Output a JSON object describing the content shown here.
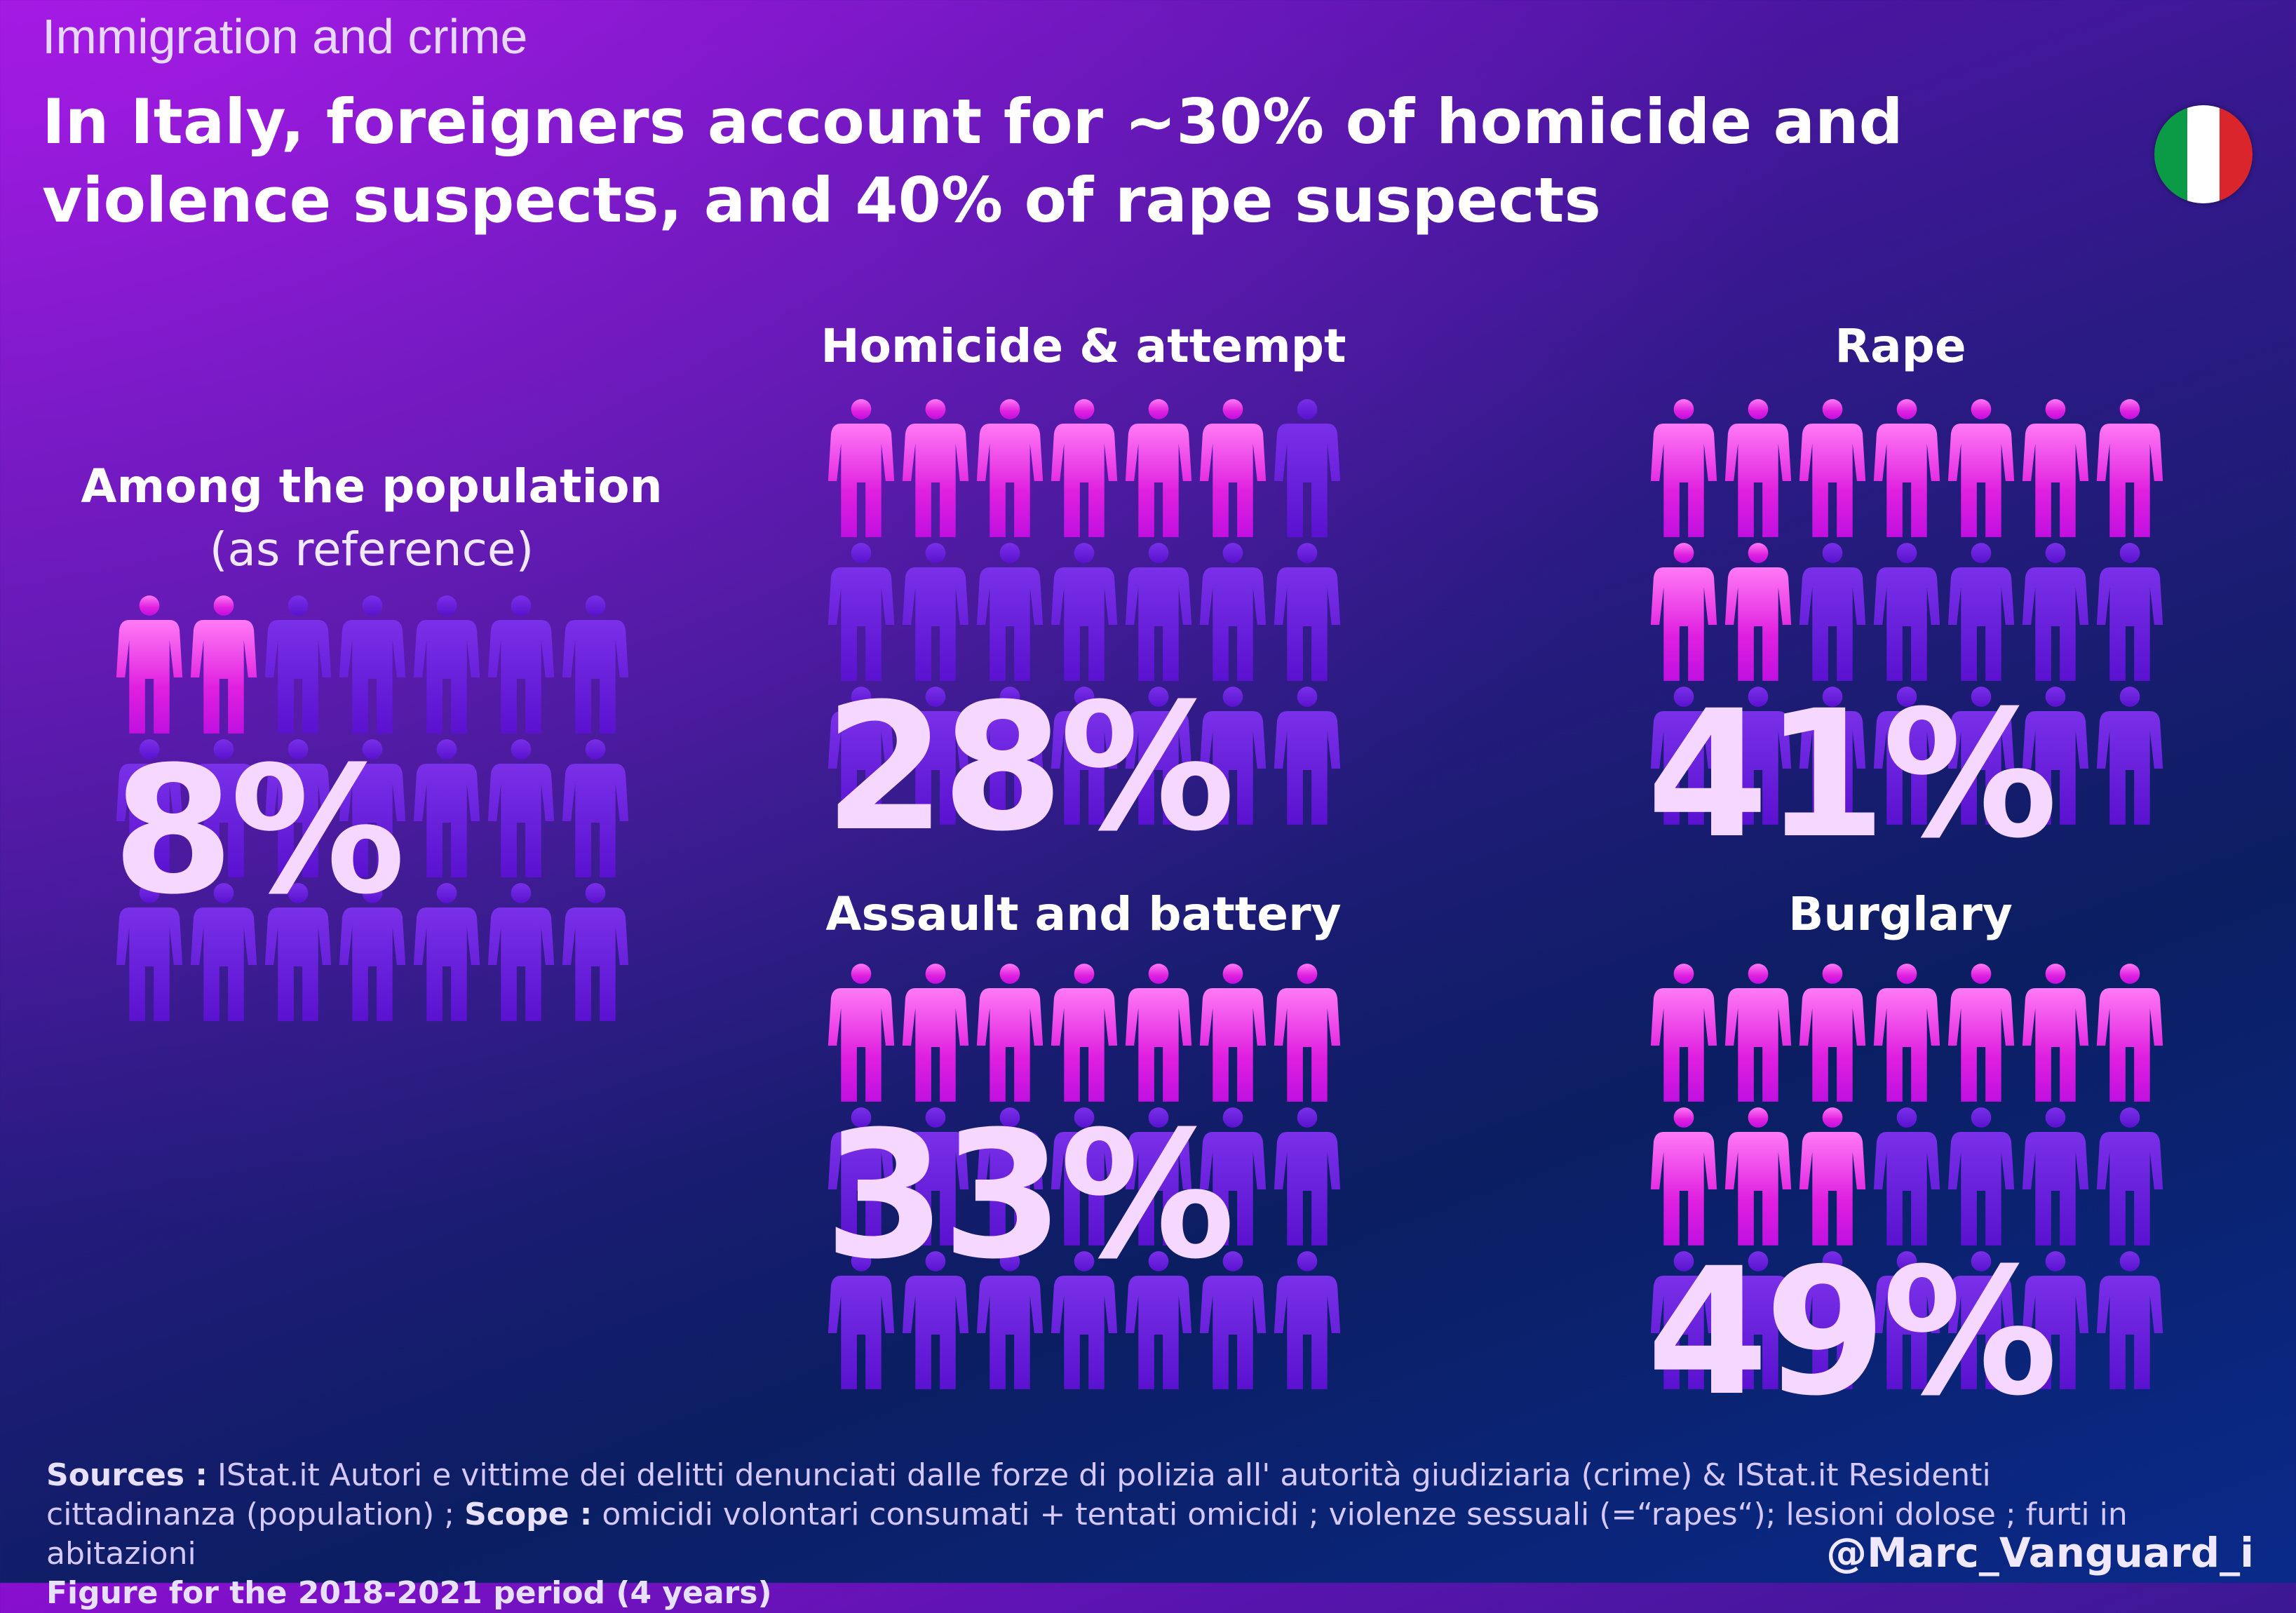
{
  "kicker": "Immigration and crime",
  "headline": "In Italy, foreigners account for ~30% of homicide and violence suspects, and 40% of rape suspects",
  "colors": {
    "foreign": "#e020e0",
    "italian": "#5a12d0",
    "flag_green": "#0b9a45",
    "flag_white": "#ffffff",
    "flag_red": "#d9252b"
  },
  "population": {
    "title": "Among the population",
    "subtitle": "(as reference)",
    "percent_label": "8%"
  },
  "chart_data": {
    "type": "pictogram",
    "unit": "share of suspects who are foreigners (%)",
    "icons_per_panel": 21,
    "categories": [
      "Among the population",
      "Homicide & attempt",
      "Rape",
      "Assault and battery",
      "Burglary"
    ],
    "values": [
      8,
      28,
      41,
      33,
      49
    ],
    "highlighted_icons": [
      2,
      6,
      9,
      7,
      10
    ]
  },
  "panels": [
    {
      "title": "Homicide & attempt",
      "percent_label": "28%"
    },
    {
      "title": "Rape",
      "percent_label": "41%"
    },
    {
      "title": "Assault and battery",
      "percent_label": "33%"
    },
    {
      "title": "Burglary",
      "percent_label": "49%"
    }
  ],
  "footer": {
    "sources_label": "Sources :",
    "sources_text": " IStat.it Autori e vittime dei delitti denunciati dalle forze di polizia all' autorità giudiziaria (crime) & IStat.it Residenti cittadinanza (population) ; ",
    "scope_label": "Scope :",
    "scope_text": " omicidi volontari consumati + tentati omicidi ; violenze sessuali (=“rapes“); lesioni dolose ; furti in abitazioni",
    "period": "Figure for the 2018-2021 period (4 years)"
  },
  "handle": "@Marc_Vanguard_i"
}
